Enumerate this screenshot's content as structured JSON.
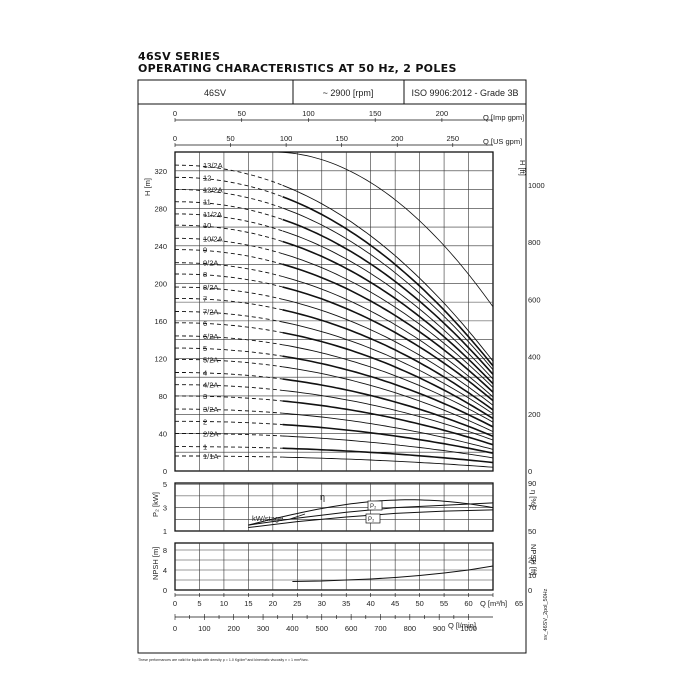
{
  "header": {
    "series": "46SV SERIES",
    "subtitle": "OPERATING CHARACTERISTICS AT 50 Hz, 2 POLES",
    "model": "46SV",
    "speed": "~ 2900 [rpm]",
    "standard": "ISO 9906:2012 - Grade 3B"
  },
  "footnote": "These performances are valid for liquids with density ρ = 1.0 Kg/dm³ and kinematic viscosity ν = 1 mm²/sec.",
  "drawing_code": "sv_46SV_2pol_50Hz",
  "axes": {
    "top_imp_label": "Q [Imp gpm]",
    "top_imp_ticks": [
      "0",
      "50",
      "100",
      "150",
      "200"
    ],
    "top_us_label": "Q [US gpm]",
    "top_us_ticks": [
      "0",
      "50",
      "100",
      "150",
      "200",
      "250"
    ],
    "h_m_label": "H [m]",
    "h_m_ticks": [
      "0",
      "40",
      "80",
      "120",
      "160",
      "200",
      "240",
      "280",
      "320"
    ],
    "h_ft_label": "H [ft]",
    "h_ft_ticks": [
      "0",
      "200",
      "400",
      "600",
      "800",
      "1000"
    ],
    "p_label": "P₂ [kW]",
    "p_ticks": [
      "1",
      "3",
      "5"
    ],
    "eta_label": "η [%]",
    "eta_ticks": [
      "50",
      "70",
      "90"
    ],
    "npsh_m_label": "NPSH [m]",
    "npsh_m_ticks": [
      "0",
      "4",
      "8"
    ],
    "npsh_ft_label": "NPSH [ft]",
    "npsh_ft_ticks": [
      "0",
      "10",
      "20"
    ],
    "q_m3h_label": "Q [m³/h]",
    "q_m3h_ticks": [
      "0",
      "5",
      "10",
      "15",
      "20",
      "25",
      "30",
      "35",
      "40",
      "45",
      "50",
      "55",
      "60",
      "65"
    ],
    "q_lmin_label": "Q [l/min]",
    "q_lmin_ticks": [
      "0",
      "100",
      "200",
      "300",
      "400",
      "500",
      "600",
      "700",
      "800",
      "900",
      "1000"
    ]
  },
  "annotations": {
    "eta": "η",
    "kw_stage": "kW/stage",
    "p2_a": "P₂",
    "p2_b": "P₂"
  },
  "chart_data": {
    "type": "line",
    "xlabel": "Q [m³/h]",
    "ylabel": "H [m]",
    "xlim": [
      0,
      65
    ],
    "ylim": [
      0,
      340
    ],
    "stage_labels": [
      "1/1A",
      "1",
      "2/2A",
      "2",
      "3/2A",
      "3",
      "4/2A",
      "4",
      "5/2A",
      "5",
      "6/2A",
      "6",
      "7/2A",
      "7",
      "8/2A",
      "8",
      "9/2A",
      "9",
      "10/2A",
      "10",
      "11/2A",
      "11",
      "12/2A",
      "12",
      "13/2A"
    ],
    "shutoff_head_m": [
      16,
      26,
      40,
      53,
      66,
      80,
      92,
      105,
      119,
      131,
      144,
      158,
      170,
      184,
      196,
      210,
      222,
      236,
      248,
      262,
      274,
      287,
      300,
      313,
      326
    ],
    "head_at_65m3h_m": [
      4,
      9,
      14,
      19,
      23,
      28,
      33,
      37,
      42,
      47,
      52,
      56,
      61,
      65,
      70,
      75,
      79,
      84,
      89,
      93,
      98,
      103,
      108,
      112,
      117
    ],
    "efficiency_curve": {
      "q": [
        15,
        25,
        35,
        45,
        55,
        65
      ],
      "eta_pct": [
        55,
        67,
        74,
        76,
        75,
        69
      ]
    },
    "power_curves": [
      {
        "name": "P₂",
        "q": [
          15,
          25,
          35,
          45,
          55,
          65
        ],
        "kw": [
          1.5,
          2.1,
          2.6,
          3.0,
          3.2,
          3.4
        ]
      },
      {
        "name": "P₂",
        "q": [
          15,
          25,
          35,
          45,
          55,
          65
        ],
        "kw": [
          1.3,
          1.8,
          2.2,
          2.5,
          2.7,
          2.8
        ]
      }
    ],
    "npsh_curve": {
      "q": [
        24,
        30,
        35,
        40,
        45,
        50,
        55,
        60,
        65
      ],
      "npsh_m": [
        1.7,
        1.8,
        2.0,
        2.2,
        2.5,
        2.9,
        3.4,
        4.0,
        4.8
      ]
    }
  }
}
